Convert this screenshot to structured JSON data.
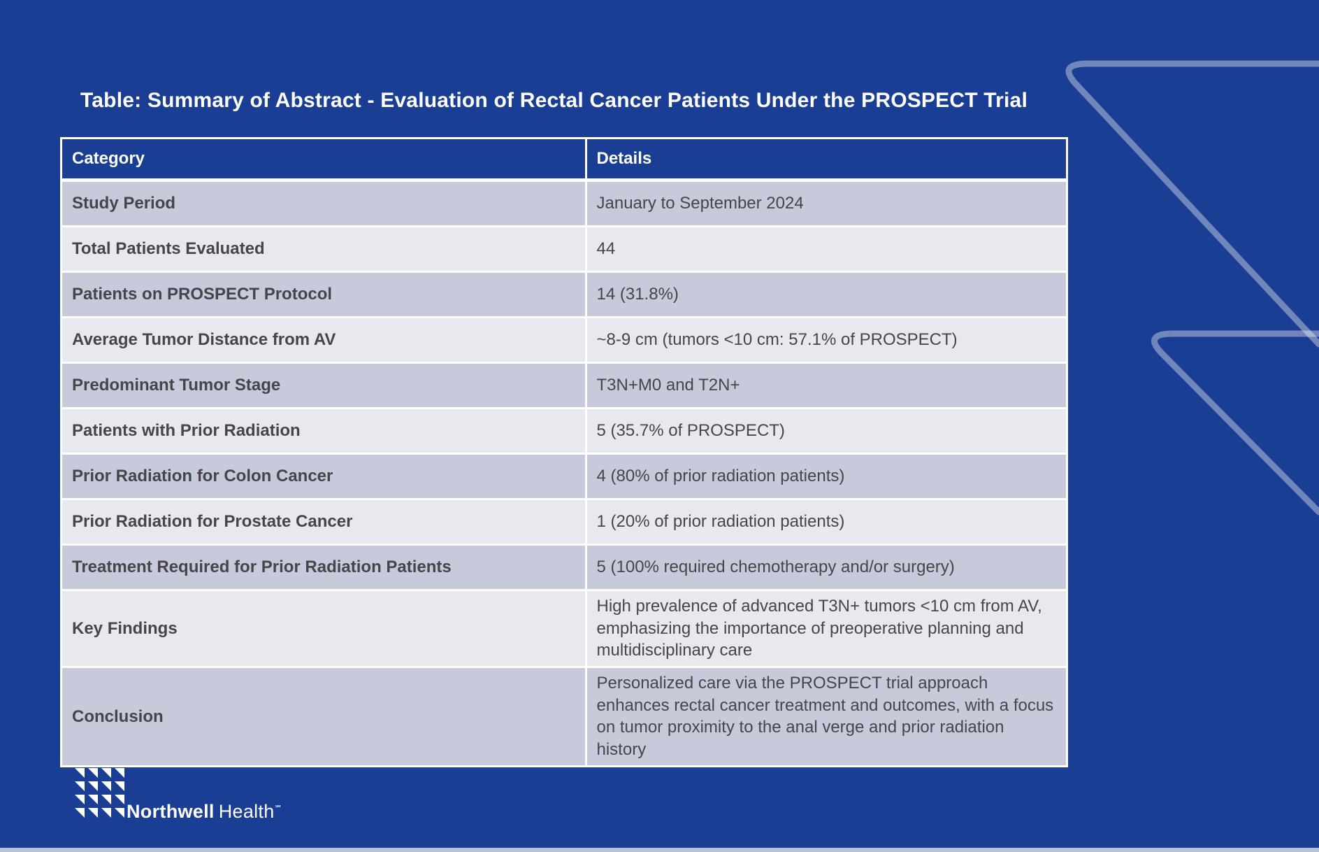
{
  "slide": {
    "title": "Table: Summary of Abstract - Evaluation of Rectal Cancer Patients Under the PROSPECT Trial",
    "colors": {
      "background": "#1a3e94",
      "header_bg": "#1a3e94",
      "header_text": "#ffffff",
      "row_dark": "#c7cada",
      "row_light": "#e8e9ef",
      "cell_text": "#45454b",
      "grid_lines": "#ffffff",
      "chevron_outline": "rgba(255,255,255,0.38)",
      "bottom_strip": "#b9c3d8"
    },
    "table": {
      "columns": [
        "Category",
        "Details"
      ],
      "rows": [
        {
          "category": "Study Period",
          "details": "January to September 2024",
          "shade": "dark"
        },
        {
          "category": "Total Patients Evaluated",
          "details": "44",
          "shade": "light"
        },
        {
          "category": "Patients on PROSPECT Protocol",
          "details": "14 (31.8%)",
          "shade": "dark"
        },
        {
          "category": "Average Tumor Distance from AV",
          "details": "~8-9 cm (tumors <10 cm: 57.1% of PROSPECT)",
          "shade": "light"
        },
        {
          "category": "Predominant Tumor Stage",
          "details": "T3N+M0 and T2N+",
          "shade": "dark"
        },
        {
          "category": "Patients with Prior Radiation",
          "details": "5 (35.7% of PROSPECT)",
          "shade": "light"
        },
        {
          "category": "Prior Radiation for Colon Cancer",
          "details": "4 (80% of prior radiation patients)",
          "shade": "dark"
        },
        {
          "category": "Prior Radiation for Prostate Cancer",
          "details": "1 (20% of prior radiation patients)",
          "shade": "light"
        },
        {
          "category": "Treatment Required for Prior Radiation Patients",
          "details": "5 (100% required chemotherapy and/or surgery)",
          "shade": "dark"
        },
        {
          "category": "Key Findings",
          "details": "High prevalence of advanced T3N+ tumors <10 cm from AV, emphasizing the importance of preoperative planning and multidisciplinary care",
          "shade": "light"
        },
        {
          "category": "Conclusion",
          "details": "Personalized care via the PROSPECT trial approach enhances rectal cancer treatment and outcomes, with a focus on tumor proximity to the anal verge and prior radiation history",
          "shade": "dark"
        }
      ]
    },
    "logo": {
      "brand_bold": "Northwell",
      "brand_light": "Health",
      "trademark": "℠"
    }
  }
}
